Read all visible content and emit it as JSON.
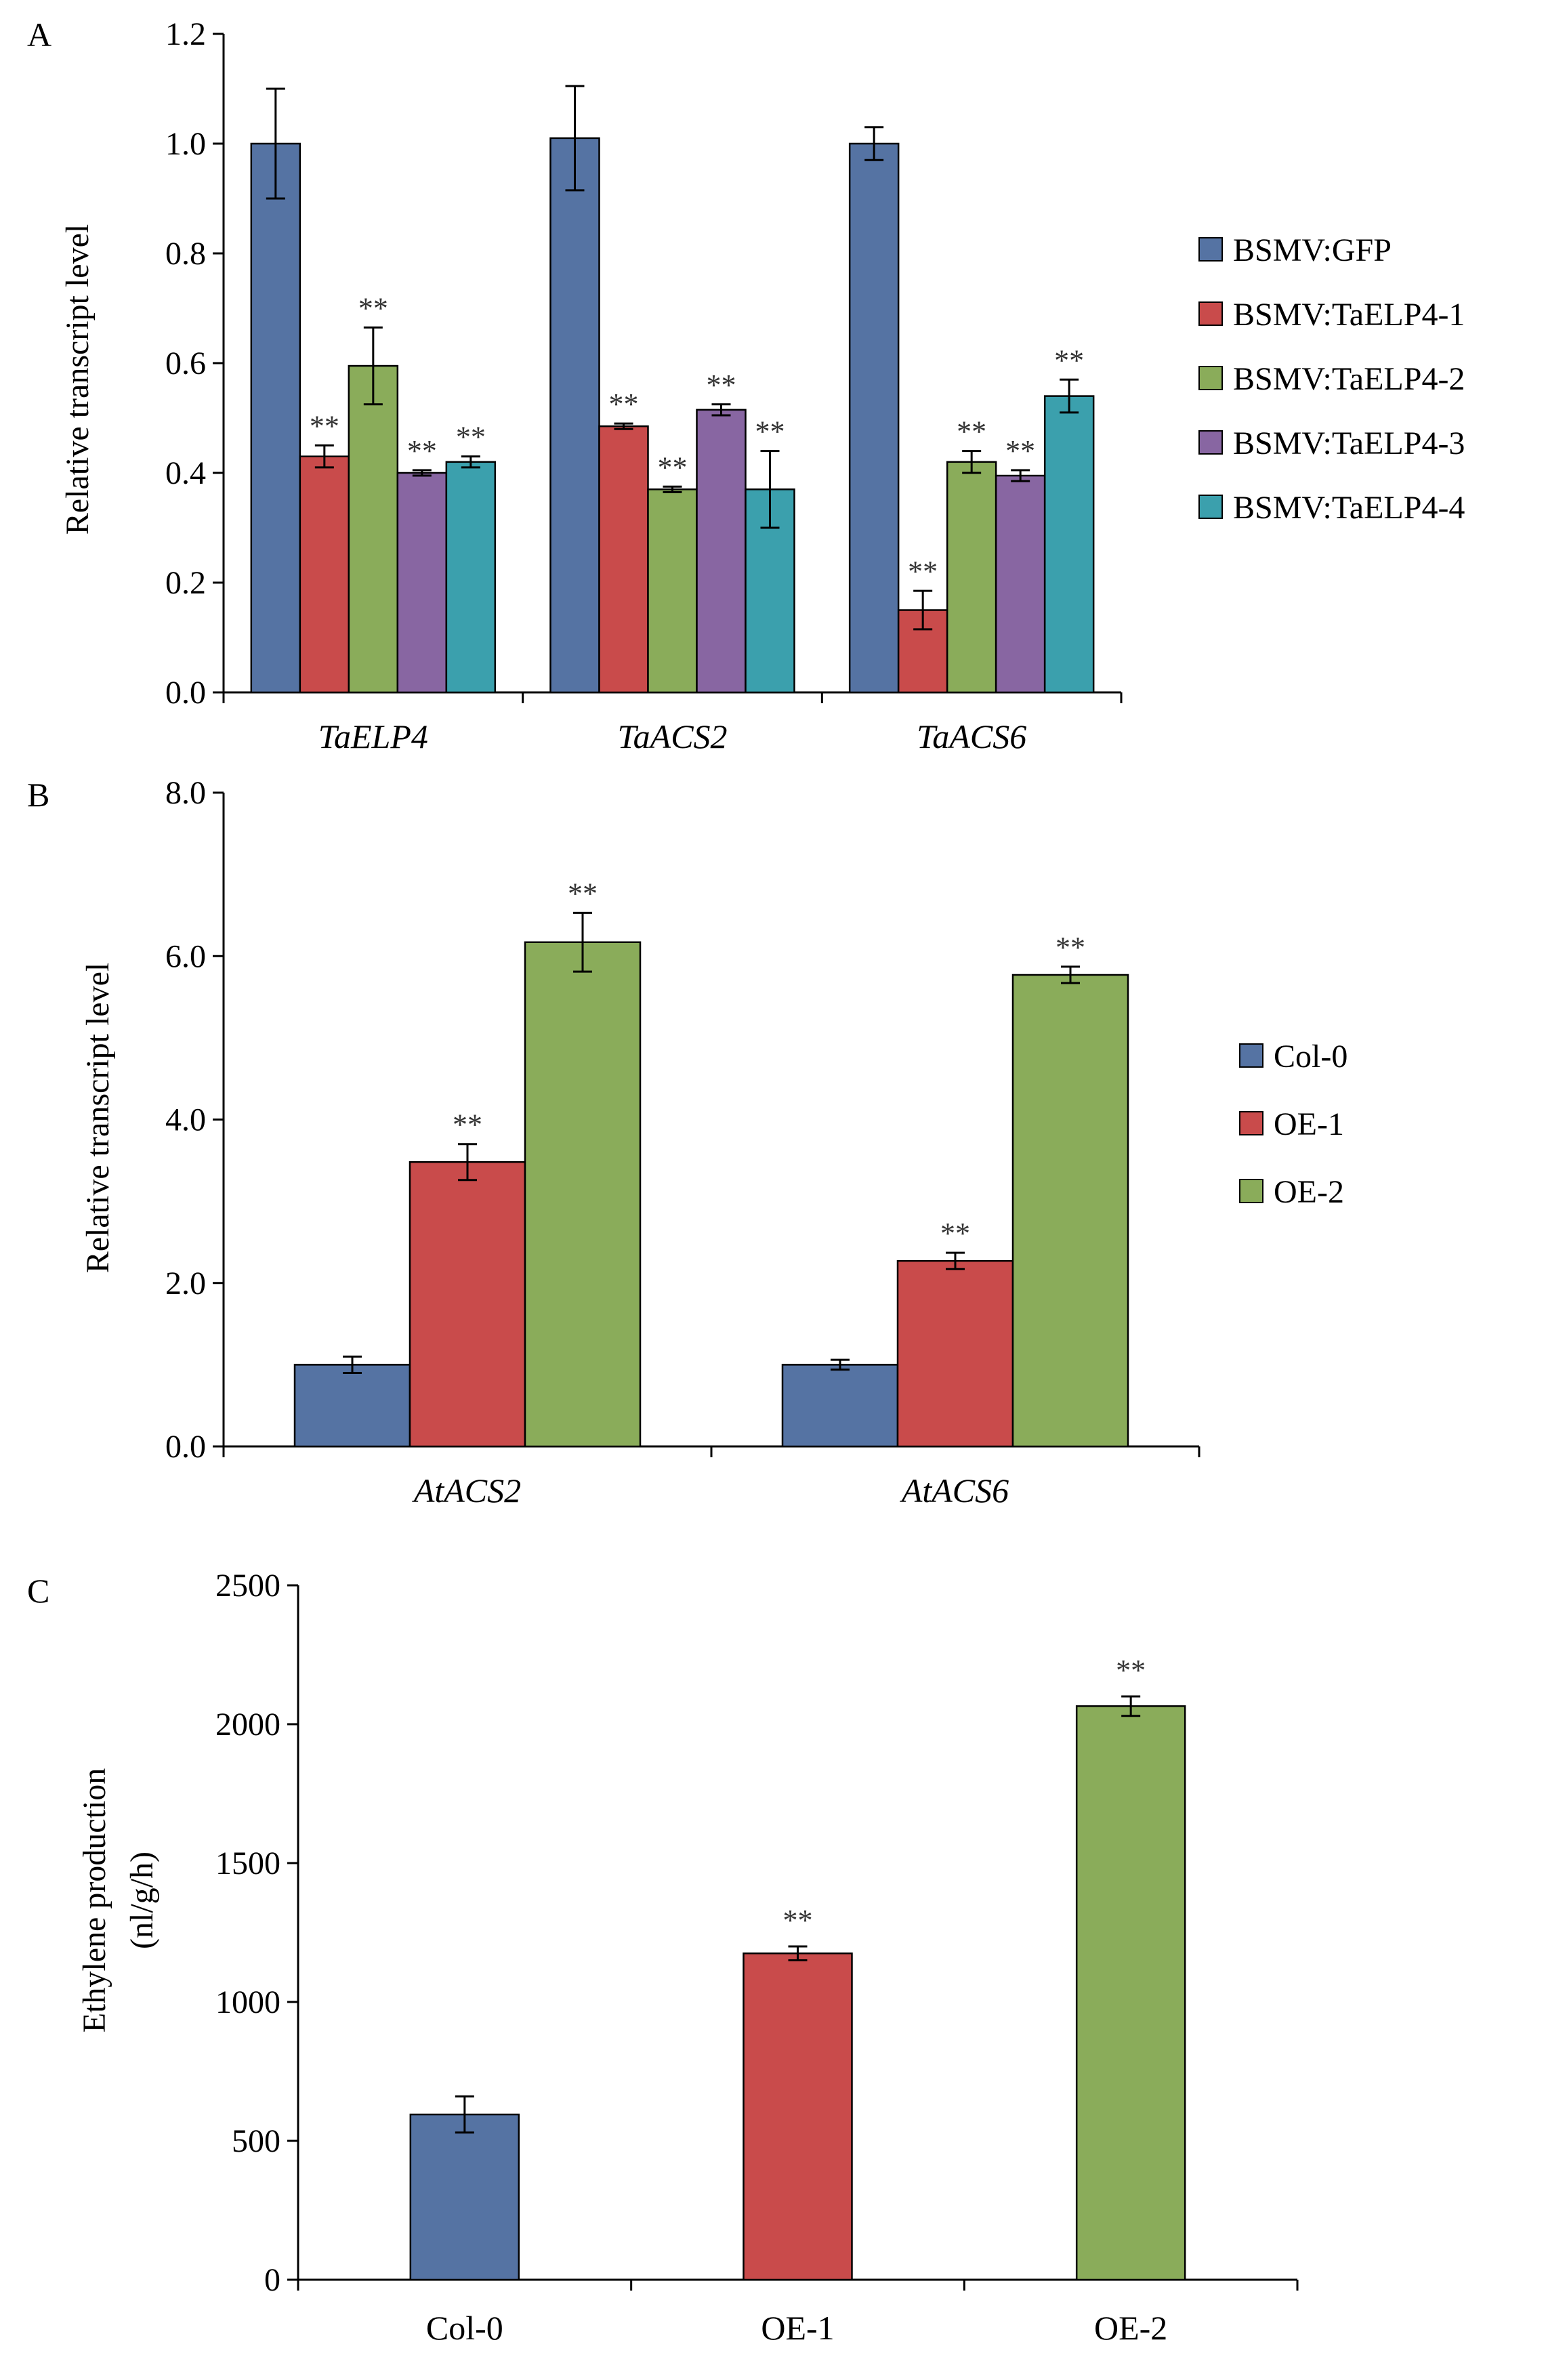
{
  "colors": {
    "blue": "#5573a3",
    "red": "#c94b4b",
    "green": "#8aac5a",
    "purple": "#8866a2",
    "teal": "#3ba0ad"
  },
  "chart_data": [
    {
      "panel": "A",
      "type": "bar",
      "ylabel": "Relative  transcript  level",
      "ylim": [
        0,
        1.2
      ],
      "yticks": [
        0,
        0.2,
        0.4,
        0.6,
        0.8,
        1.0,
        1.2
      ],
      "tick_format": 1,
      "categories": [
        "TaELP4",
        "TaACS2",
        "TaACS6"
      ],
      "legend_position": "right",
      "series": [
        {
          "name": "BSMV:GFP",
          "color": "#5573a3",
          "values": [
            1.0,
            1.01,
            1.0
          ],
          "errors": [
            0.1,
            0.095,
            0.03
          ],
          "sig": [
            "",
            "",
            ""
          ]
        },
        {
          "name": "BSMV:TaELP4-1",
          "color": "#c94b4b",
          "values": [
            0.43,
            0.485,
            0.15
          ],
          "errors": [
            0.02,
            0.005,
            0.035
          ],
          "sig": [
            "**",
            "**",
            "**"
          ]
        },
        {
          "name": "BSMV:TaELP4-2",
          "color": "#8aac5a",
          "values": [
            0.595,
            0.37,
            0.42
          ],
          "errors": [
            0.07,
            0.005,
            0.02
          ],
          "sig": [
            "**",
            "**",
            "**"
          ]
        },
        {
          "name": "BSMV:TaELP4-3",
          "color": "#8866a2",
          "values": [
            0.4,
            0.515,
            0.395
          ],
          "errors": [
            0.005,
            0.01,
            0.01
          ],
          "sig": [
            "**",
            "**",
            "**"
          ]
        },
        {
          "name": "BSMV:TaELP4-4",
          "color": "#3ba0ad",
          "values": [
            0.42,
            0.37,
            0.54
          ],
          "errors": [
            0.01,
            0.07,
            0.03
          ],
          "sig": [
            "**",
            "**",
            "**"
          ]
        }
      ]
    },
    {
      "panel": "B",
      "type": "bar",
      "ylabel": "Relative transcript level",
      "ylim": [
        0,
        8
      ],
      "yticks": [
        0,
        2,
        4,
        6,
        8
      ],
      "tick_format": 1,
      "categories": [
        "AtACS2",
        "AtACS6"
      ],
      "legend_position": "right",
      "series": [
        {
          "name": "Col-0",
          "color": "#5573a3",
          "values": [
            1.0,
            1.0
          ],
          "errors": [
            0.1,
            0.06
          ],
          "sig": [
            "",
            ""
          ]
        },
        {
          "name": "OE-1",
          "color": "#c94b4b",
          "values": [
            3.48,
            2.27
          ],
          "errors": [
            0.22,
            0.1
          ],
          "sig": [
            "**",
            "**"
          ]
        },
        {
          "name": "OE-2",
          "color": "#8aac5a",
          "values": [
            6.17,
            5.77
          ],
          "errors": [
            0.36,
            0.1
          ],
          "sig": [
            "**",
            "**"
          ]
        }
      ]
    },
    {
      "panel": "C",
      "type": "bar",
      "ylabel": "Ethylene production",
      "ylabel2": "(nl/g/h)",
      "ylim": [
        0,
        2500
      ],
      "yticks": [
        0,
        500,
        1000,
        1500,
        2000,
        2500
      ],
      "tick_format": 0,
      "categories": [
        "Col-0",
        "OE-1",
        "OE-2"
      ],
      "bars": [
        {
          "label": "Col-0",
          "color": "#5573a3",
          "value": 595,
          "error": 65,
          "sig": ""
        },
        {
          "label": "OE-1",
          "color": "#c94b4b",
          "value": 1175,
          "error": 25,
          "sig": "**"
        },
        {
          "label": "OE-2",
          "color": "#8aac5a",
          "value": 2065,
          "error": 35,
          "sig": "**"
        }
      ]
    }
  ]
}
